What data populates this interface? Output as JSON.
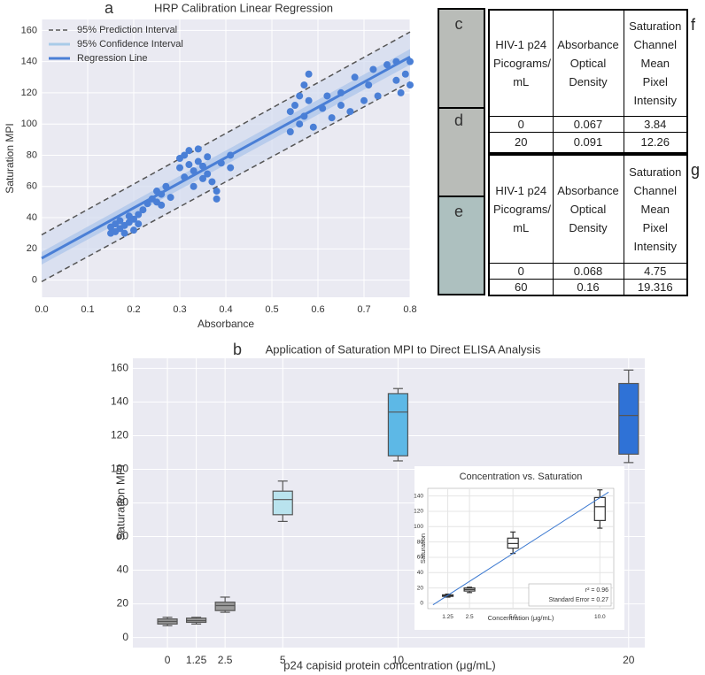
{
  "chart_data": [
    {
      "type": "scatter",
      "panel_label": "a",
      "title": "HRP Calibration Linear Regression",
      "xlabel": "Absorbance",
      "ylabel": "Saturation MPI",
      "xlim": [
        0,
        0.8
      ],
      "ylim": [
        -11,
        167
      ],
      "xticks": [
        {
          "value": 0,
          "label": "0.0"
        },
        0.1,
        0.2,
        0.3,
        0.4,
        0.5,
        0.6,
        0.7,
        0.8
      ],
      "yticks": [
        0,
        20,
        40,
        60,
        80,
        100,
        120,
        140,
        160
      ],
      "grid": true,
      "legend": "upper left",
      "points": {
        "color": "#4a7fd6",
        "x": [
          0.15,
          0.15,
          0.16,
          0.16,
          0.17,
          0.17,
          0.18,
          0.18,
          0.19,
          0.19,
          0.2,
          0.2,
          0.21,
          0.21,
          0.22,
          0.23,
          0.24,
          0.25,
          0.25,
          0.26,
          0.26,
          0.27,
          0.28,
          0.3,
          0.3,
          0.31,
          0.31,
          0.32,
          0.32,
          0.33,
          0.33,
          0.34,
          0.34,
          0.35,
          0.35,
          0.36,
          0.36,
          0.37,
          0.38,
          0.38,
          0.39,
          0.41,
          0.41,
          0.54,
          0.54,
          0.55,
          0.56,
          0.56,
          0.57,
          0.57,
          0.58,
          0.58,
          0.59,
          0.61,
          0.62,
          0.63,
          0.65,
          0.65,
          0.67,
          0.68,
          0.7,
          0.71,
          0.72,
          0.73,
          0.75,
          0.77,
          0.77,
          0.78,
          0.79,
          0.8,
          0.8
        ],
        "values": [
          30,
          34,
          31,
          36,
          33,
          38,
          35,
          30,
          37,
          41,
          32,
          39,
          36,
          42,
          45,
          49,
          52,
          50,
          57,
          55,
          48,
          60,
          53,
          72,
          78,
          66,
          80,
          74,
          83,
          60,
          70,
          76,
          84,
          65,
          73,
          68,
          79,
          63,
          52,
          57,
          75,
          72,
          80,
          95,
          108,
          112,
          100,
          118,
          105,
          125,
          115,
          132,
          98,
          110,
          118,
          104,
          112,
          120,
          108,
          130,
          115,
          125,
          135,
          118,
          138,
          128,
          140,
          120,
          132,
          125,
          140
        ]
      },
      "series": [
        {
          "name": "95% Prediction Interval",
          "color": "#555555",
          "style": "dashed",
          "fill": "#d3dcf0",
          "x": [
            0,
            0.8
          ],
          "upper": [
            29,
            159
          ],
          "lower": [
            -1,
            127
          ]
        },
        {
          "name": "95% Confidence Interval",
          "color": "#a9cbe8",
          "fill": "#a9c3ea",
          "x": [
            0,
            0.8
          ],
          "upper": [
            18,
            148
          ],
          "lower": [
            10,
            138
          ]
        },
        {
          "name": "Regression Line",
          "color": "#4a7fd6",
          "x": [
            0,
            0.8
          ],
          "values": [
            14,
            143
          ]
        }
      ]
    },
    {
      "type": "box",
      "panel_label": "b",
      "title": "Application of Saturation MPI to Direct ELISA Analysis",
      "xlabel": "p24 capisid protein concentration (μg/mL)",
      "ylabel": "Saturation MPI",
      "xlim": [
        -1.5,
        20.7
      ],
      "ylim": [
        -6,
        166
      ],
      "xticks": [
        0,
        1.25,
        2.5,
        5,
        10,
        20
      ],
      "yticks": [
        0,
        20,
        40,
        60,
        80,
        100,
        120,
        140,
        160
      ],
      "grid": true,
      "x": [
        0,
        1.25,
        2.5,
        5,
        10,
        20
      ],
      "whislo": [
        7,
        8,
        15,
        69,
        105,
        104
      ],
      "q1": [
        8,
        9,
        16,
        73,
        108,
        109
      ],
      "med": [
        9.5,
        10,
        19,
        82,
        134,
        132
      ],
      "q3": [
        11,
        11.5,
        21,
        87,
        145,
        151
      ],
      "whishi": [
        12,
        12,
        24,
        93,
        148,
        159
      ],
      "colors": [
        "#9a9a9a",
        "#9a9a9a",
        "#9a9a9a",
        "#b9e3ee",
        "#5db8e6",
        "#2f72d6"
      ],
      "edge_color": "#555555"
    },
    {
      "type": "box",
      "title": "Concentration vs. Saturation",
      "xlabel": "Concentration (μg/mL)",
      "ylabel": "Saturation",
      "xlim": [
        0.1,
        10.8
      ],
      "ylim": [
        -7,
        150
      ],
      "xticks": [
        1.25,
        2.5,
        {
          "value": 5,
          "label": "5.0"
        },
        {
          "value": 10,
          "label": "10.0"
        }
      ],
      "yticks": [
        0,
        20,
        40,
        60,
        80,
        100,
        120,
        140
      ],
      "grid": true,
      "x": [
        1.25,
        2.5,
        5,
        10
      ],
      "whislo": [
        8,
        14,
        65,
        98
      ],
      "q1": [
        9,
        16,
        72,
        108
      ],
      "med": [
        10,
        18,
        78,
        126
      ],
      "q3": [
        11,
        20,
        85,
        138
      ],
      "whishi": [
        12,
        21,
        93,
        148
      ],
      "colors": [
        "#ffffff",
        "#ffffff",
        "#ffffff",
        "#ffffff"
      ],
      "edge_color": "#333333",
      "fit": {
        "color": "#3a78d0",
        "x": [
          0.4,
          10.5
        ],
        "values": [
          -2,
          145
        ]
      },
      "annotations": [
        "r² = 0.96",
        "Standard Error = 0.27"
      ]
    }
  ],
  "photo_labels": [
    "c",
    "d",
    "e"
  ],
  "tables": [
    {
      "label": "f",
      "header": [
        "HIV-1 p24 Picograms/ mL",
        "Absorbance Optical Density",
        "Saturation Channel Mean Pixel Intensity"
      ],
      "rows": [
        [
          0,
          0.067,
          3.84
        ],
        [
          20,
          0.091,
          12.26
        ]
      ]
    },
    {
      "label": "g",
      "header": [
        "HIV-1 p24 Picograms/ mL",
        "Absorbance Optical Density",
        "Saturation Channel Mean Pixel Intensity"
      ],
      "rows": [
        [
          0,
          0.068,
          4.75
        ],
        [
          60,
          0.16,
          19.316
        ]
      ]
    }
  ]
}
